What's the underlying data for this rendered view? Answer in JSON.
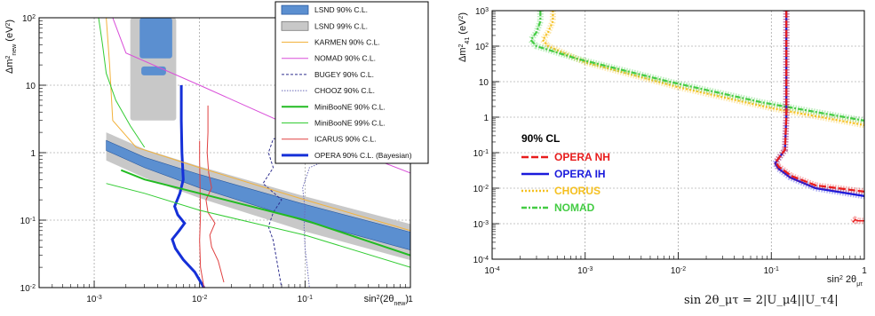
{
  "chart_data": [
    {
      "type": "line",
      "xlabel_main": "sin",
      "xlabel_sup": "2",
      "xlabel_paren": "(2θ",
      "xlabel_sub": "new",
      "xlabel_close": ")",
      "ylabel_main": "Δm",
      "ylabel_sup": "2",
      "ylabel_sub": "new",
      "ylabel_unit": "(eV",
      "ylabel_unit_sup": "2",
      "ylabel_unit_close": ")",
      "xscale": "log",
      "yscale": "log",
      "xlim": [
        0.0003,
        1
      ],
      "ylim": [
        0.01,
        100
      ],
      "x_ticks": [
        {
          "v": 0.001,
          "label": "10",
          "sup": "-3"
        },
        {
          "v": 0.01,
          "label": "10",
          "sup": "-2"
        },
        {
          "v": 0.1,
          "label": "10",
          "sup": "-1"
        },
        {
          "v": 1,
          "label": "1",
          "sup": ""
        }
      ],
      "y_ticks": [
        {
          "v": 0.01,
          "label": "10",
          "sup": "-2"
        },
        {
          "v": 0.1,
          "label": "10",
          "sup": "-1"
        },
        {
          "v": 1,
          "label": "1",
          "sup": ""
        },
        {
          "v": 10,
          "label": "10",
          "sup": ""
        },
        {
          "v": 100,
          "label": "10",
          "sup": "2"
        }
      ],
      "grid": true,
      "legend_position": "top-right",
      "legend": [
        {
          "label": "LSND 90% C.L.",
          "kind": "fill",
          "color": "#5b8fd0",
          "border": "#2a5aa0"
        },
        {
          "label": "LSND 99% C.L.",
          "kind": "fill",
          "color": "#c8c8c8",
          "border": "#777777"
        },
        {
          "label": "KARMEN 90% C.L.",
          "kind": "line",
          "color": "#f2b23c",
          "dash": ""
        },
        {
          "label": "NOMAD 90% C.L.",
          "kind": "line",
          "color": "#d94fd9",
          "dash": ""
        },
        {
          "label": "BUGEY 90% C.L.",
          "kind": "line",
          "color": "#2f2f8f",
          "dash": "3,2"
        },
        {
          "label": "CHOOZ 90% C.L.",
          "kind": "line",
          "color": "#6a6ab8",
          "dash": "1.5,1.5"
        },
        {
          "label": "MiniBooNE 90% C.L.",
          "kind": "line",
          "color": "#22bb22",
          "dash": "",
          "width": 2
        },
        {
          "label": "MiniBooNE 99% C.L.",
          "kind": "line",
          "color": "#33cc33",
          "dash": "",
          "width": 1
        },
        {
          "label": "ICARUS 90% C.L.",
          "kind": "line",
          "color": "#e04040",
          "dash": ""
        },
        {
          "label": "OPERA 90% C.L. (Bayesian)",
          "kind": "line",
          "color": "#1530d8",
          "dash": "",
          "width": 3
        }
      ],
      "series": [
        {
          "name": "OPERA 90% C.L. (Bayesian)",
          "color": "#1530d8",
          "width": 3,
          "dash": "",
          "x": [
            0.0067,
            0.0067,
            0.0068,
            0.007,
            0.0065,
            0.0058,
            0.0062,
            0.0072,
            0.0064,
            0.0055,
            0.0059,
            0.007,
            0.009,
            0.011
          ],
          "y": [
            10,
            3,
            1,
            0.4,
            0.25,
            0.16,
            0.12,
            0.09,
            0.07,
            0.052,
            0.038,
            0.026,
            0.017,
            0.01
          ]
        },
        {
          "name": "ICARUS 90% C.L.",
          "color": "#e04040",
          "width": 1,
          "dash": "",
          "x": [
            0.012,
            0.012,
            0.0118,
            0.0122,
            0.013,
            0.0115,
            0.012,
            0.014,
            0.0125,
            0.013,
            0.015,
            0.017
          ],
          "y": [
            5,
            2,
            1,
            0.5,
            0.3,
            0.2,
            0.13,
            0.09,
            0.06,
            0.04,
            0.025,
            0.012
          ]
        },
        {
          "name": "ICARUS 90% C.L. (2)",
          "color": "#e04040",
          "width": 1,
          "dash": "",
          "x": [
            0.01,
            0.01,
            0.0101,
            0.0102,
            0.01,
            0.0102,
            0.011
          ],
          "y": [
            1.5,
            0.8,
            0.3,
            0.12,
            0.05,
            0.02,
            0.01
          ]
        },
        {
          "name": "BUGEY 90% C.L.",
          "color": "#2f2f8f",
          "width": 1,
          "dash": "3,2",
          "x": [
            0.3,
            0.1,
            0.05,
            0.045,
            0.05,
            0.04,
            0.06,
            0.05,
            0.045,
            0.05,
            0.06
          ],
          "y": [
            2.2,
            2.0,
            1.6,
            1.0,
            0.6,
            0.35,
            0.2,
            0.13,
            0.08,
            0.05,
            0.01
          ]
        },
        {
          "name": "CHOOZ 90% C.L.",
          "color": "#6a6ab8",
          "width": 1,
          "dash": "1.5,1.5",
          "x": [
            0.2,
            0.11,
            0.095,
            0.1,
            0.098,
            0.1,
            0.105,
            0.11
          ],
          "y": [
            0.9,
            0.6,
            0.3,
            0.15,
            0.08,
            0.04,
            0.02,
            0.01
          ]
        },
        {
          "name": "NOMAD 90% C.L.",
          "color": "#d94fd9",
          "width": 1,
          "dash": "",
          "x": [
            0.0015,
            0.002,
            0.01,
            0.1,
            1
          ],
          "y": [
            100,
            30,
            10,
            2,
            0.5
          ]
        },
        {
          "name": "KARMEN 90% C.L.",
          "color": "#f2b23c",
          "width": 1,
          "dash": "",
          "x": [
            0.0013,
            0.0014,
            0.0015,
            0.0025,
            0.01,
            0.1,
            1
          ],
          "y": [
            100,
            20,
            3,
            1.2,
            0.6,
            0.2,
            0.07
          ]
        },
        {
          "name": "MiniBooNE 90% C.L.",
          "color": "#22bb22",
          "width": 2,
          "dash": "",
          "x": [
            0.0018,
            0.003,
            0.01,
            0.1,
            1
          ],
          "y": [
            0.55,
            0.4,
            0.25,
            0.1,
            0.03
          ]
        },
        {
          "name": "MiniBooNE 99% C.L.",
          "color": "#33cc33",
          "width": 1,
          "dash": "",
          "x": [
            0.0013,
            0.003,
            0.01,
            0.1,
            1
          ],
          "y": [
            0.35,
            0.25,
            0.14,
            0.06,
            0.02
          ]
        },
        {
          "name": "MiniBooNE 99% C.L. (upper)",
          "color": "#33cc33",
          "width": 1,
          "dash": "",
          "x": [
            0.0011,
            0.0012,
            0.0013,
            0.0016,
            0.0022,
            0.003
          ],
          "y": [
            100,
            40,
            15,
            6,
            2.5,
            1.2
          ]
        }
      ]
    },
    {
      "type": "line",
      "xlabel_main": "sin",
      "xlabel_sup": "2",
      "xlabel_theta": "2θ",
      "xlabel_sub": "μτ",
      "ylabel_main": "Δm",
      "ylabel_sup": "2",
      "ylabel_sub": "41",
      "ylabel_unit": "(eV",
      "ylabel_unit_sup": "2",
      "ylabel_unit_close": ")",
      "xscale": "log",
      "yscale": "log",
      "xlim": [
        0.0001,
        1
      ],
      "ylim": [
        0.0001,
        1000
      ],
      "x_ticks": [
        {
          "v": 0.0001,
          "label": "10",
          "sup": "-4"
        },
        {
          "v": 0.001,
          "label": "10",
          "sup": "-3"
        },
        {
          "v": 0.01,
          "label": "10",
          "sup": "-2"
        },
        {
          "v": 0.1,
          "label": "10",
          "sup": "-1"
        },
        {
          "v": 1,
          "label": "1",
          "sup": ""
        }
      ],
      "y_ticks": [
        {
          "v": 0.0001,
          "label": "10",
          "sup": "-4"
        },
        {
          "v": 0.001,
          "label": "10",
          "sup": "-3"
        },
        {
          "v": 0.01,
          "label": "10",
          "sup": "-2"
        },
        {
          "v": 0.1,
          "label": "10",
          "sup": "-1"
        },
        {
          "v": 1,
          "label": "1",
          "sup": ""
        },
        {
          "v": 10,
          "label": "10",
          "sup": ""
        },
        {
          "v": 100,
          "label": "10",
          "sup": "2"
        },
        {
          "v": 1000,
          "label": "10",
          "sup": "3"
        }
      ],
      "grid": true,
      "legend_position": "bottom-left",
      "legend_title": "90% CL",
      "legend": [
        {
          "label": "OPERA NH",
          "color": "#e81c1c",
          "dash": "8,3"
        },
        {
          "label": "OPERA IH",
          "color": "#1a1adc",
          "dash": ""
        },
        {
          "label": "CHORUS",
          "color": "#f5c020",
          "dash": "2,2"
        },
        {
          "label": "NOMAD",
          "color": "#44cc44",
          "dash": "6,2,2,2"
        }
      ],
      "series": [
        {
          "name": "CHORUS",
          "color": "#f5c020",
          "dash": "2,2",
          "x": [
            0.00045,
            0.00045,
            0.0004,
            0.00035,
            0.0004,
            0.001,
            0.01,
            0.1,
            1
          ],
          "y": [
            1000,
            500,
            250,
            150,
            100,
            35,
            7,
            1.8,
            0.6
          ]
        },
        {
          "name": "NOMAD",
          "color": "#44cc44",
          "dash": "6,2,2,2",
          "x": [
            0.00033,
            0.00033,
            0.0003,
            0.00026,
            0.0003,
            0.0008,
            0.008,
            0.08,
            1
          ],
          "y": [
            1000,
            500,
            250,
            150,
            100,
            45,
            10,
            2.6,
            0.8
          ]
        },
        {
          "name": "OPERA IH",
          "color": "#1a1adc",
          "dash": "",
          "x": [
            0.145,
            0.145,
            0.14,
            0.11,
            0.12,
            0.13,
            0.16,
            0.3,
            1
          ],
          "y": [
            1000,
            1,
            0.12,
            0.05,
            0.035,
            0.03,
            0.02,
            0.01,
            0.006
          ]
        },
        {
          "name": "OPERA NH",
          "color": "#e81c1c",
          "dash": "8,3",
          "x": [
            0.145,
            0.145,
            0.14,
            0.112,
            0.12,
            0.13,
            0.165,
            0.3,
            1
          ],
          "y": [
            1000,
            1,
            0.12,
            0.055,
            0.04,
            0.035,
            0.022,
            0.012,
            0.008
          ]
        },
        {
          "name": "OPERA NH (low)",
          "color": "#e81c1c",
          "dash": "",
          "x": [
            0.75,
            0.8,
            0.85,
            1.0
          ],
          "y": [
            0.0011,
            0.0013,
            0.0012,
            0.0012
          ]
        }
      ]
    }
  ],
  "formula": "sin 2θ_μτ = 2|U_μ4||U_τ4|"
}
